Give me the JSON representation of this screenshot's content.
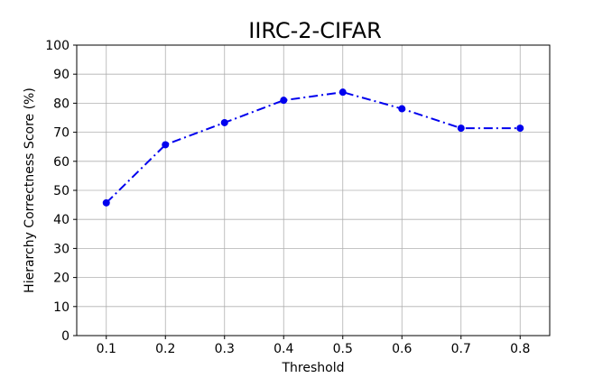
{
  "chart_data": {
    "type": "line",
    "title": "IIRC-2-CIFAR",
    "xlabel": "Threshold",
    "ylabel": "Hierarchy Correctness Score (%)",
    "x": [
      0.1,
      0.2,
      0.3,
      0.4,
      0.5,
      0.6,
      0.7,
      0.8
    ],
    "x_tick_labels": [
      "0.1",
      "0.2",
      "0.3",
      "0.4",
      "0.5",
      "0.6",
      "0.7",
      "0.8"
    ],
    "y_ticks": [
      0,
      10,
      20,
      30,
      40,
      50,
      60,
      70,
      80,
      90,
      100
    ],
    "y_tick_labels": [
      "0",
      "10",
      "20",
      "30",
      "40",
      "50",
      "60",
      "70",
      "80",
      "90",
      "100"
    ],
    "xlim": [
      0.05,
      0.85
    ],
    "ylim": [
      0,
      100
    ],
    "grid": true,
    "series": [
      {
        "values": [
          45.7,
          65.7,
          73.3,
          81.0,
          83.8,
          78.1,
          71.4,
          71.4
        ],
        "color": "#0000ee",
        "line_style": "dash-dot",
        "marker": "circle"
      }
    ]
  }
}
